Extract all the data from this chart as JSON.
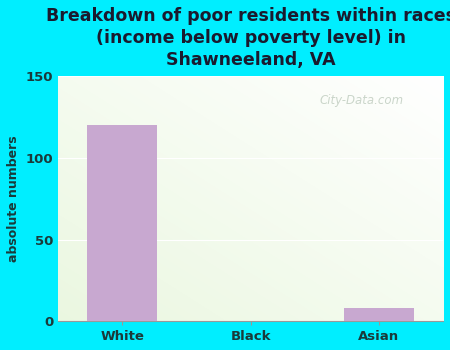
{
  "categories": [
    "White",
    "Black",
    "Asian"
  ],
  "values": [
    120,
    0,
    8
  ],
  "bar_color": "#c8a8d0",
  "title": "Breakdown of poor residents within races\n(income below poverty level) in\nShawneeland, VA",
  "ylabel": "absolute numbers",
  "ylim": [
    0,
    150
  ],
  "yticks": [
    0,
    50,
    100,
    150
  ],
  "title_fontsize": 12.5,
  "label_fontsize": 9,
  "tick_fontsize": 9.5,
  "background_outer": "#00eeff",
  "watermark": "City-Data.com",
  "bar_width": 0.55,
  "title_color": "#1a1a2e",
  "tick_color": "#1a3a3a",
  "grid_color": "#ccddcc"
}
